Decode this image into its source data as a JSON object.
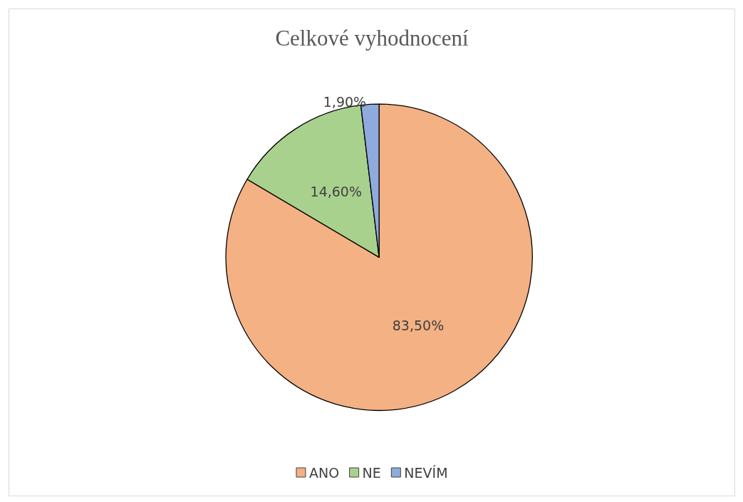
{
  "chart_data": {
    "type": "pie",
    "title": "Celkové vyhodnocení",
    "categories": [
      "ANO",
      "NE",
      "NEVÍM"
    ],
    "values": [
      83.5,
      14.6,
      1.9
    ],
    "colors": [
      "#f4b183",
      "#a9d18e",
      "#8faadc"
    ],
    "value_labels": [
      "83,50%",
      "14,60%",
      "1,90%"
    ],
    "legend": "bottom"
  }
}
